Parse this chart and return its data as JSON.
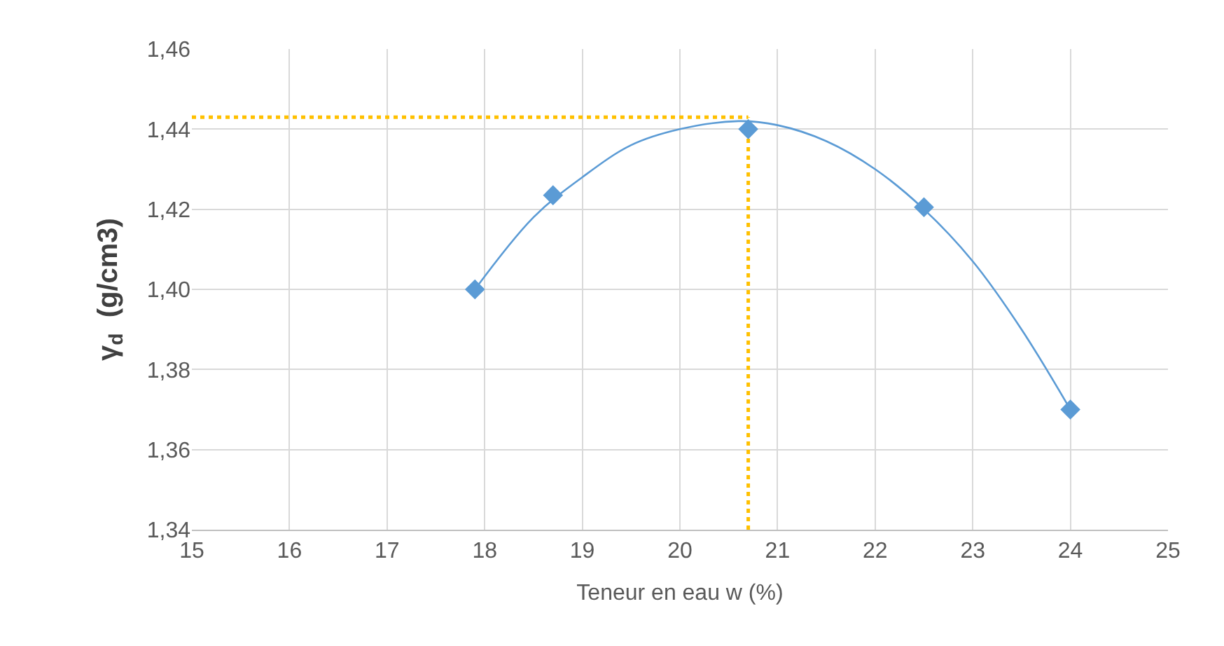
{
  "chart_data": {
    "type": "scatter",
    "xlabel": "Teneur en eau w (%)",
    "ylabel": "γ$_{d}$  (g/cm3)",
    "xlim": [
      15,
      25
    ],
    "xticks": [
      15,
      16,
      17,
      18,
      19,
      20,
      21,
      22,
      23,
      24,
      25
    ],
    "ylim": [
      1.34,
      1.46
    ],
    "yticks": [
      {
        "value": 1.34,
        "label": "1,34"
      },
      {
        "value": 1.36,
        "label": "1,36"
      },
      {
        "value": 1.38,
        "label": "1,38"
      },
      {
        "value": 1.4,
        "label": "1,40"
      },
      {
        "value": 1.42,
        "label": "1,42"
      },
      {
        "value": 1.44,
        "label": "1,44"
      },
      {
        "value": 1.46,
        "label": "1,46"
      }
    ],
    "grid": true,
    "series": [
      {
        "type": "line",
        "color": "#5b9bd5",
        "marker": "none",
        "line_style": "solid",
        "x": [
          17.9,
          18.5,
          19,
          19.5,
          20,
          20.6,
          21,
          21.5,
          22,
          22.5,
          23,
          23.5,
          24
        ],
        "values": [
          1.4,
          1.418,
          1.428,
          1.436,
          1.44,
          1.442,
          1.441,
          1.437,
          1.43,
          1.42,
          1.407,
          1.39,
          1.37
        ]
      },
      {
        "type": "line",
        "color": "#ffc000",
        "marker": "none",
        "line_style": "dotted",
        "x": [
          15,
          20.7
        ],
        "values": [
          1.443,
          1.443
        ]
      },
      {
        "type": "line",
        "color": "#ffc000",
        "marker": "none",
        "line_style": "dotted",
        "x": [
          20.7,
          20.7
        ],
        "values": [
          1.34,
          1.443
        ]
      },
      {
        "color": "#5b9bd5",
        "marker": "diamond",
        "x": [
          17.9,
          18.7,
          20.7,
          22.5,
          24.0
        ],
        "values": [
          1.4,
          1.4235,
          1.44,
          1.4205,
          1.37
        ]
      }
    ]
  }
}
